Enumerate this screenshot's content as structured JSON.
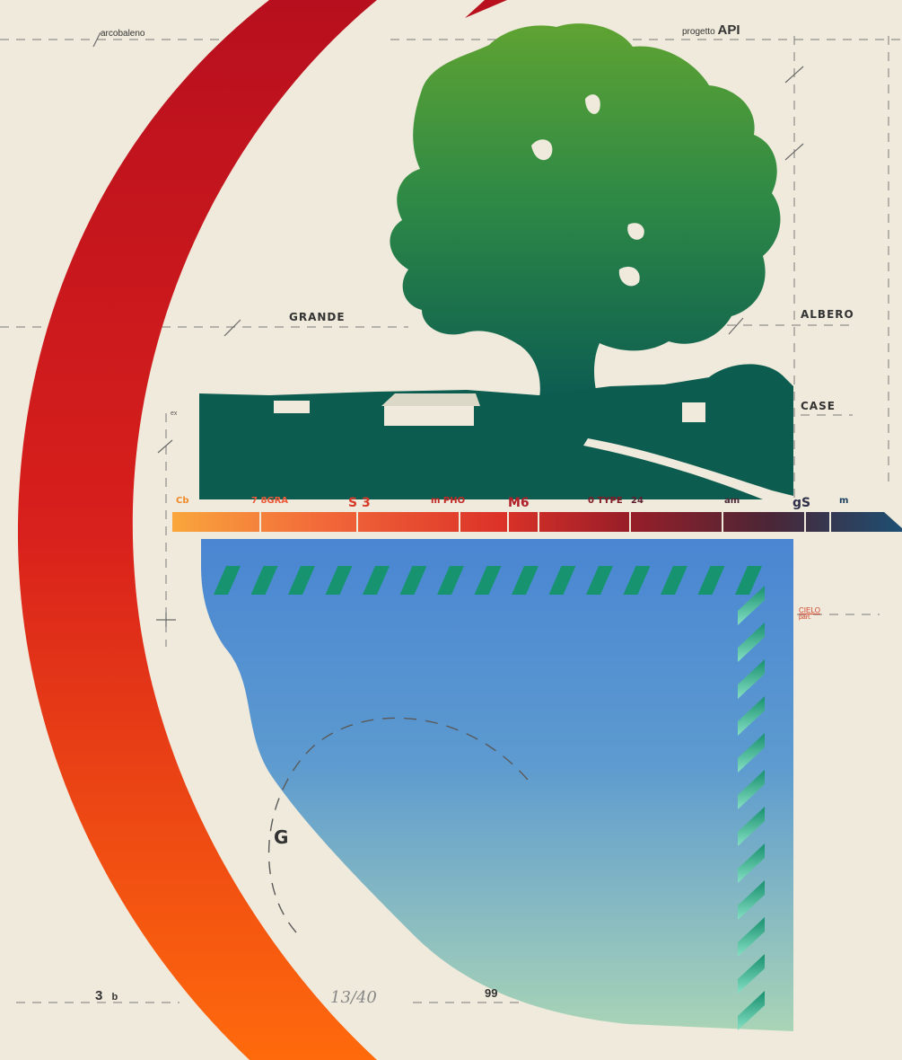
{
  "labels": {
    "arcobaleno": "arcobaleno",
    "progetto_prefix": "progetto",
    "progetto_api": "API",
    "grande": "GRANDE",
    "albero": "ALBERO",
    "case": "CASE",
    "ex": "ex",
    "cielo": "CIELO",
    "cielo_sub": "part.",
    "g": "G",
    "bottom_left_num": "3",
    "bottom_left_letter": "b",
    "edition": "13/40",
    "bottom_center": "99"
  },
  "scale_bar": {
    "segments": [
      {
        "text": "Cb",
        "color": "#f7a03a",
        "text_color": "#f08a28"
      },
      {
        "text": "7 8GRA",
        "color": "#f36a3a",
        "text_color": "#ec5a3a"
      },
      {
        "text": "S 3",
        "color": "#ea4530",
        "text_color": "#d83a2a"
      },
      {
        "text": "m PHO",
        "color": "#d8302a",
        "text_color": "#c02a28"
      },
      {
        "text": "M6",
        "color": "#b8222a",
        "text_color": "#b0202a"
      },
      {
        "text": "0 TYPE",
        "color": "#8e1e28",
        "text_color": "#801a25"
      },
      {
        "text": "24",
        "color": "#6e1f2a",
        "text_color": "#5e2030"
      },
      {
        "text": "am",
        "color": "#4f2535",
        "text_color": "#4a2838"
      },
      {
        "text": "gS",
        "color": "#3a2a40",
        "text_color": "#30304a"
      },
      {
        "text": "m",
        "color": "#1f4a6a",
        "text_color": "#1e4060"
      }
    ]
  },
  "colors": {
    "paper": "#efeadc",
    "arc_top": "#c0121c",
    "arc_bottom": "#ff6a10",
    "tree_top": "#5a9e2e",
    "tree_bottom": "#0b5e52",
    "sky_top": "#4a8ad0",
    "sky_bottom": "#a6d2b8",
    "stripes": "#1a9a78"
  }
}
